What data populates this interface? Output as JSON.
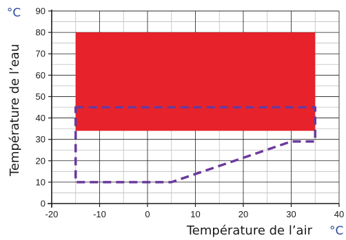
{
  "chart_data": {
    "type": "area",
    "xlabel": "Température de l’air",
    "ylabel": "Température de l’eau",
    "x_unit": "°C",
    "y_unit": "°C",
    "xlim": [
      -20,
      40
    ],
    "ylim": [
      0,
      90
    ],
    "x_ticks": [
      "-20",
      "-10",
      "0",
      "10",
      "20",
      "30",
      "40"
    ],
    "y_ticks": [
      "0",
      "10",
      "20",
      "30",
      "40",
      "50",
      "60",
      "70",
      "80",
      "90"
    ],
    "grid": true,
    "series": [
      {
        "style": "filled-region",
        "color": "#e8222a",
        "x": [
          -15,
          35,
          35,
          -15
        ],
        "y": [
          34,
          34,
          80,
          80
        ]
      },
      {
        "style": "dashed-outline",
        "color": "#6a3a9c",
        "x": [
          -15,
          35,
          35,
          30,
          5,
          -15
        ],
        "y": [
          45,
          45,
          29,
          29,
          10,
          10
        ]
      }
    ]
  },
  "colors": {
    "unit": "#2b4a9c",
    "grid": "#1a1a1a",
    "region": "#e8222a",
    "outline": "#6a3a9c"
  }
}
